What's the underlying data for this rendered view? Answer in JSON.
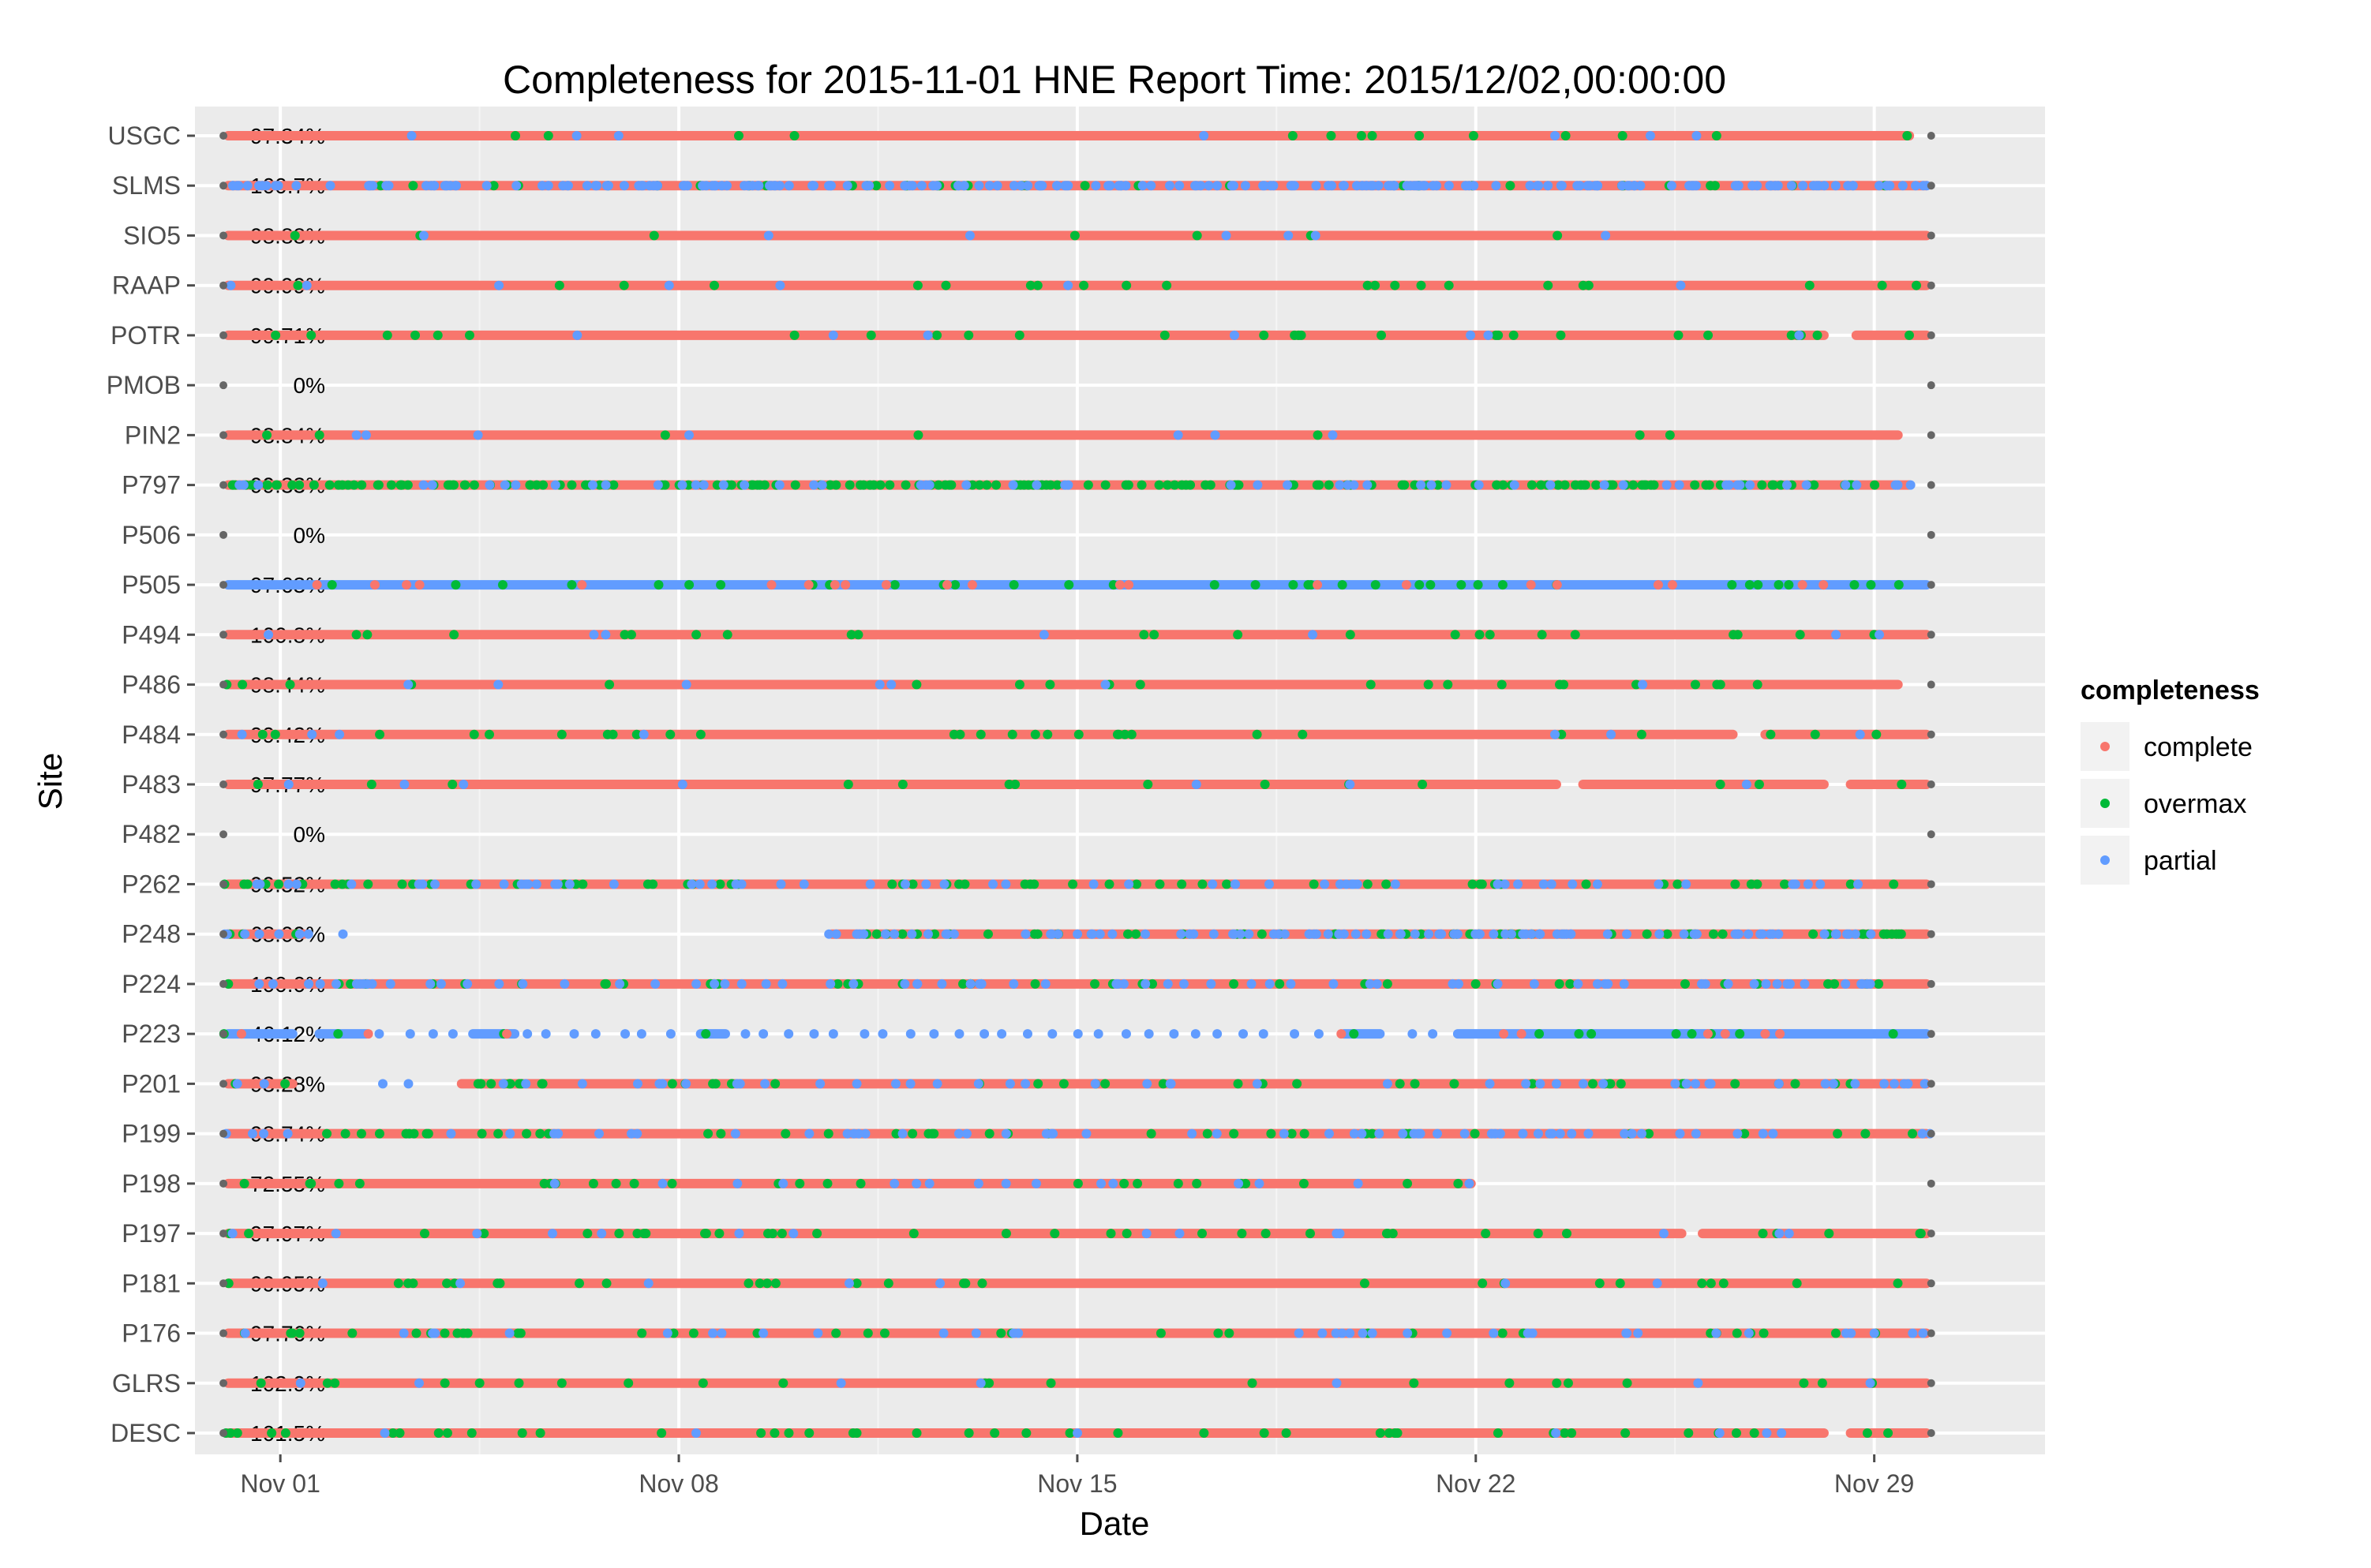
{
  "chart_data": {
    "type": "scatter",
    "title": "Completeness for  2015-11-01 HNE  Report Time:  2015/12/02,00:00:00",
    "xlabel": "Date",
    "ylabel": "Site",
    "x_ticks": [
      "Nov 01",
      "Nov 08",
      "Nov 15",
      "Nov 22",
      "Nov 29"
    ],
    "x_tick_days": [
      1,
      8,
      15,
      22,
      29
    ],
    "xlim_days": [
      -0.5,
      32.0
    ],
    "x_range_days": [
      0.0,
      30.0
    ],
    "grid": true,
    "legend": {
      "title": "completeness",
      "position": "right",
      "entries": [
        {
          "label": "complete",
          "color": "#F8766D"
        },
        {
          "label": "overmax",
          "color": "#00BA38"
        },
        {
          "label": "partial",
          "color": "#619CFF"
        }
      ]
    },
    "colors": {
      "panel": "#EBEBEB",
      "grid": "#FFFFFF",
      "endpoint": "#666666",
      "complete": "#F8766D",
      "overmax": "#00BA38",
      "partial": "#619CFF"
    },
    "sites": [
      {
        "name": "USGC",
        "percent": "97.34%",
        "base": "complete",
        "overmax_density": 0.02,
        "partial_density": 0.01,
        "segments": [
          [
            0.0,
            29.7
          ]
        ]
      },
      {
        "name": "SLMS",
        "percent": "100.7%",
        "base": "complete",
        "overmax_density": 0.05,
        "partial_density": 0.3,
        "segments": [
          [
            0.0,
            30.0
          ]
        ]
      },
      {
        "name": "SIO5",
        "percent": "98.88%",
        "base": "complete",
        "overmax_density": 0.01,
        "partial_density": 0.01,
        "segments": [
          [
            0.0,
            30.0
          ]
        ]
      },
      {
        "name": "RAAP",
        "percent": "99.99%",
        "base": "complete",
        "overmax_density": 0.03,
        "partial_density": 0.01,
        "segments": [
          [
            0.0,
            30.0
          ]
        ]
      },
      {
        "name": "POTR",
        "percent": "99.71%",
        "base": "complete",
        "overmax_density": 0.04,
        "partial_density": 0.01,
        "segments": [
          [
            0.0,
            28.2
          ],
          [
            28.6,
            30.0
          ]
        ]
      },
      {
        "name": "PMOB",
        "percent": "0%",
        "base": "none",
        "overmax_density": 0,
        "partial_density": 0,
        "segments": []
      },
      {
        "name": "PIN2",
        "percent": "98.84%",
        "base": "complete",
        "overmax_density": 0.01,
        "partial_density": 0.01,
        "segments": [
          [
            0.0,
            29.5
          ]
        ]
      },
      {
        "name": "P797",
        "percent": "99.33%",
        "base": "complete",
        "overmax_density": 0.25,
        "partial_density": 0.08,
        "segments": [
          [
            0.0,
            29.7
          ]
        ]
      },
      {
        "name": "P506",
        "percent": "0%",
        "base": "none",
        "overmax_density": 0,
        "partial_density": 0,
        "segments": []
      },
      {
        "name": "P505",
        "percent": "97.63%",
        "base": "partial",
        "overmax_density": 0.05,
        "partial_density": 0,
        "segments": [
          [
            0.0,
            30.0
          ]
        ]
      },
      {
        "name": "P494",
        "percent": "100.8%",
        "base": "complete",
        "overmax_density": 0.03,
        "partial_density": 0.01,
        "segments": [
          [
            0.0,
            30.0
          ]
        ]
      },
      {
        "name": "P486",
        "percent": "98.44%",
        "base": "complete",
        "overmax_density": 0.03,
        "partial_density": 0.01,
        "segments": [
          [
            0.0,
            29.5
          ]
        ]
      },
      {
        "name": "P484",
        "percent": "99.42%",
        "base": "complete",
        "overmax_density": 0.04,
        "partial_density": 0.01,
        "segments": [
          [
            0.0,
            26.6
          ],
          [
            27.0,
            30.0
          ]
        ]
      },
      {
        "name": "P483",
        "percent": "97.77%",
        "base": "complete",
        "overmax_density": 0.02,
        "partial_density": 0.01,
        "segments": [
          [
            0.0,
            23.5
          ],
          [
            23.8,
            28.2
          ],
          [
            28.5,
            30.0
          ]
        ]
      },
      {
        "name": "P482",
        "percent": "0%",
        "base": "none",
        "overmax_density": 0,
        "partial_density": 0,
        "segments": []
      },
      {
        "name": "P262",
        "percent": "99.52%",
        "base": "complete",
        "overmax_density": 0.08,
        "partial_density": 0.08,
        "segments": [
          [
            0.0,
            30.0
          ]
        ]
      },
      {
        "name": "P248",
        "percent": "68.09%",
        "base": "complete",
        "overmax_density": 0.12,
        "partial_density": 0.2,
        "segments": [
          [
            0.0,
            1.5
          ],
          [
            10.6,
            30.0
          ]
        ]
      },
      {
        "name": "P224",
        "percent": "100.0%",
        "base": "complete",
        "overmax_density": 0.06,
        "partial_density": 0.1,
        "segments": [
          [
            0.0,
            30.0
          ]
        ]
      },
      {
        "name": "P223",
        "percent": "46.12%",
        "base": "partial",
        "overmax_density": 0.04,
        "partial_density": 0,
        "segments": [
          [
            0.0,
            1.3
          ],
          [
            1.6,
            2.6
          ],
          [
            4.3,
            5.2
          ],
          [
            8.3,
            8.9
          ],
          [
            19.6,
            20.4
          ],
          [
            21.6,
            30.0
          ]
        ]
      },
      {
        "name": "P201",
        "percent": "93.28%",
        "base": "complete",
        "overmax_density": 0.07,
        "partial_density": 0.07,
        "segments": [
          [
            0.0,
            1.3
          ],
          [
            4.1,
            30.0
          ]
        ]
      },
      {
        "name": "P199",
        "percent": "98.74%",
        "base": "complete",
        "overmax_density": 0.06,
        "partial_density": 0.08,
        "segments": [
          [
            0.0,
            30.0
          ]
        ]
      },
      {
        "name": "P198",
        "percent": "72.55%",
        "base": "complete",
        "overmax_density": 0.05,
        "partial_density": 0.03,
        "segments": [
          [
            0.0,
            22.0
          ]
        ]
      },
      {
        "name": "P197",
        "percent": "97.97%",
        "base": "complete",
        "overmax_density": 0.05,
        "partial_density": 0.02,
        "segments": [
          [
            0.0,
            25.7
          ],
          [
            25.9,
            30.0
          ]
        ]
      },
      {
        "name": "P181",
        "percent": "99.95%",
        "base": "complete",
        "overmax_density": 0.04,
        "partial_density": 0.01,
        "segments": [
          [
            0.0,
            30.0
          ]
        ]
      },
      {
        "name": "P176",
        "percent": "97.76%",
        "base": "complete",
        "overmax_density": 0.05,
        "partial_density": 0.05,
        "segments": [
          [
            0.0,
            30.0
          ]
        ]
      },
      {
        "name": "GLRS",
        "percent": "102.9%",
        "base": "complete",
        "overmax_density": 0.03,
        "partial_density": 0.01,
        "segments": [
          [
            0.0,
            30.0
          ]
        ]
      },
      {
        "name": "DESC",
        "percent": "101.5%",
        "base": "complete",
        "overmax_density": 0.06,
        "partial_density": 0.01,
        "segments": [
          [
            0.0,
            28.2
          ],
          [
            28.5,
            30.0
          ]
        ]
      }
    ]
  }
}
